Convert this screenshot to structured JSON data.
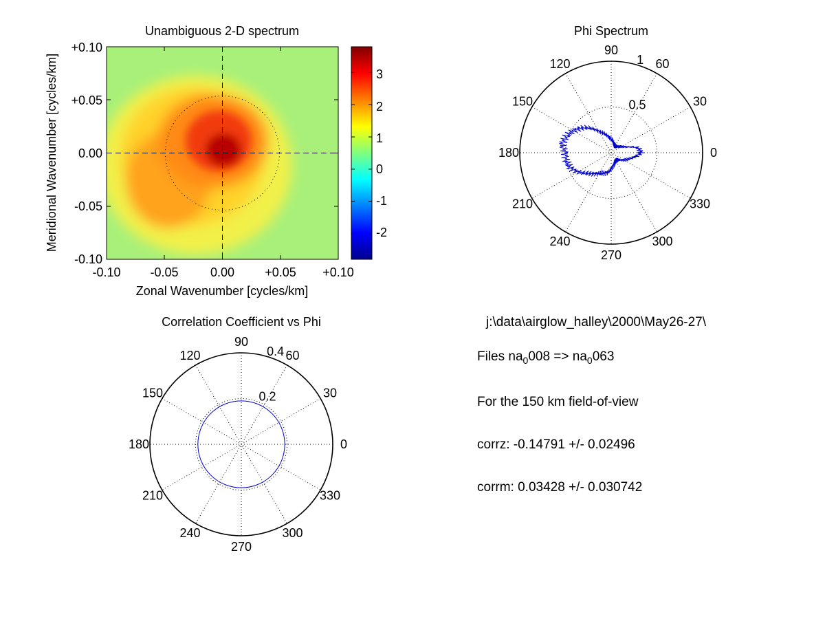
{
  "chart_data": [
    {
      "id": "spectrum2d",
      "type": "heatmap",
      "title": "Unambiguous 2-D spectrum",
      "xlabel": "Zonal Wavenumber [cycles/km]",
      "ylabel": "Meridional Wavenumber [cycles/km]",
      "xlim": [
        -0.1,
        0.1
      ],
      "ylim": [
        -0.1,
        0.1
      ],
      "xticks": [
        "-0.10",
        "-0.05",
        "0.00",
        "+0.05",
        "+0.10"
      ],
      "yticks": [
        "+0.10",
        "+0.05",
        "0.00",
        "-0.05",
        "-0.10"
      ],
      "colorbar": {
        "min": -2.8,
        "max": 3.8,
        "ticks": [
          "3",
          "2",
          "1",
          "0",
          "-1",
          "-2"
        ],
        "colormap": "jet"
      },
      "peak_value": 3.7,
      "background_value": 0.5,
      "reference_circle_radius": 0.05
    },
    {
      "id": "phi_spectrum",
      "type": "line",
      "projection": "polar",
      "title": "Phi Spectrum",
      "rmax": 1,
      "rings": [
        0.5,
        1
      ],
      "ring_labels": [
        "0.5",
        "1"
      ],
      "angle_labels": [
        "0",
        "30",
        "60",
        "90",
        "120",
        "150",
        "180",
        "210",
        "240",
        "270",
        "300",
        "330"
      ],
      "line_color": "#0000cc",
      "r": [
        0.33,
        0.3,
        0.18,
        0.13,
        0.1,
        0.09,
        0.08,
        0.1,
        0.12,
        0.15,
        0.18,
        0.22,
        0.27,
        0.35,
        0.42,
        0.48,
        0.52,
        0.55,
        0.5,
        0.5,
        0.48,
        0.42,
        0.35,
        0.3,
        0.26,
        0.24,
        0.22,
        0.18,
        0.14,
        0.12,
        0.1,
        0.1,
        0.12,
        0.16,
        0.2,
        0.26
      ]
    },
    {
      "id": "corr_phi",
      "type": "line",
      "projection": "polar",
      "title": "Correlation Coefficient vs Phi",
      "rmax": 0.4,
      "rings": [
        0.2,
        0.4
      ],
      "ring_labels": [
        "0.2",
        "0.4"
      ],
      "angle_labels": [
        "0",
        "30",
        "60",
        "90",
        "120",
        "150",
        "180",
        "210",
        "240",
        "270",
        "300",
        "330"
      ],
      "line_color": "#0000cc",
      "circle_radius": 0.19
    }
  ],
  "info": {
    "path": "j:\\data\\airglow_halley\\2000\\May26-27\\",
    "files_prefix": "Files  na",
    "sub_a": "0",
    "files_mid": "008  =>  na",
    "sub_b": "0",
    "files_end": "063",
    "fov": "For the  150 km field-of-view",
    "corrz": "corrz: -0.14791 +/- 0.02496",
    "corrm": "corrm: 0.03428 +/- 0.030742"
  }
}
